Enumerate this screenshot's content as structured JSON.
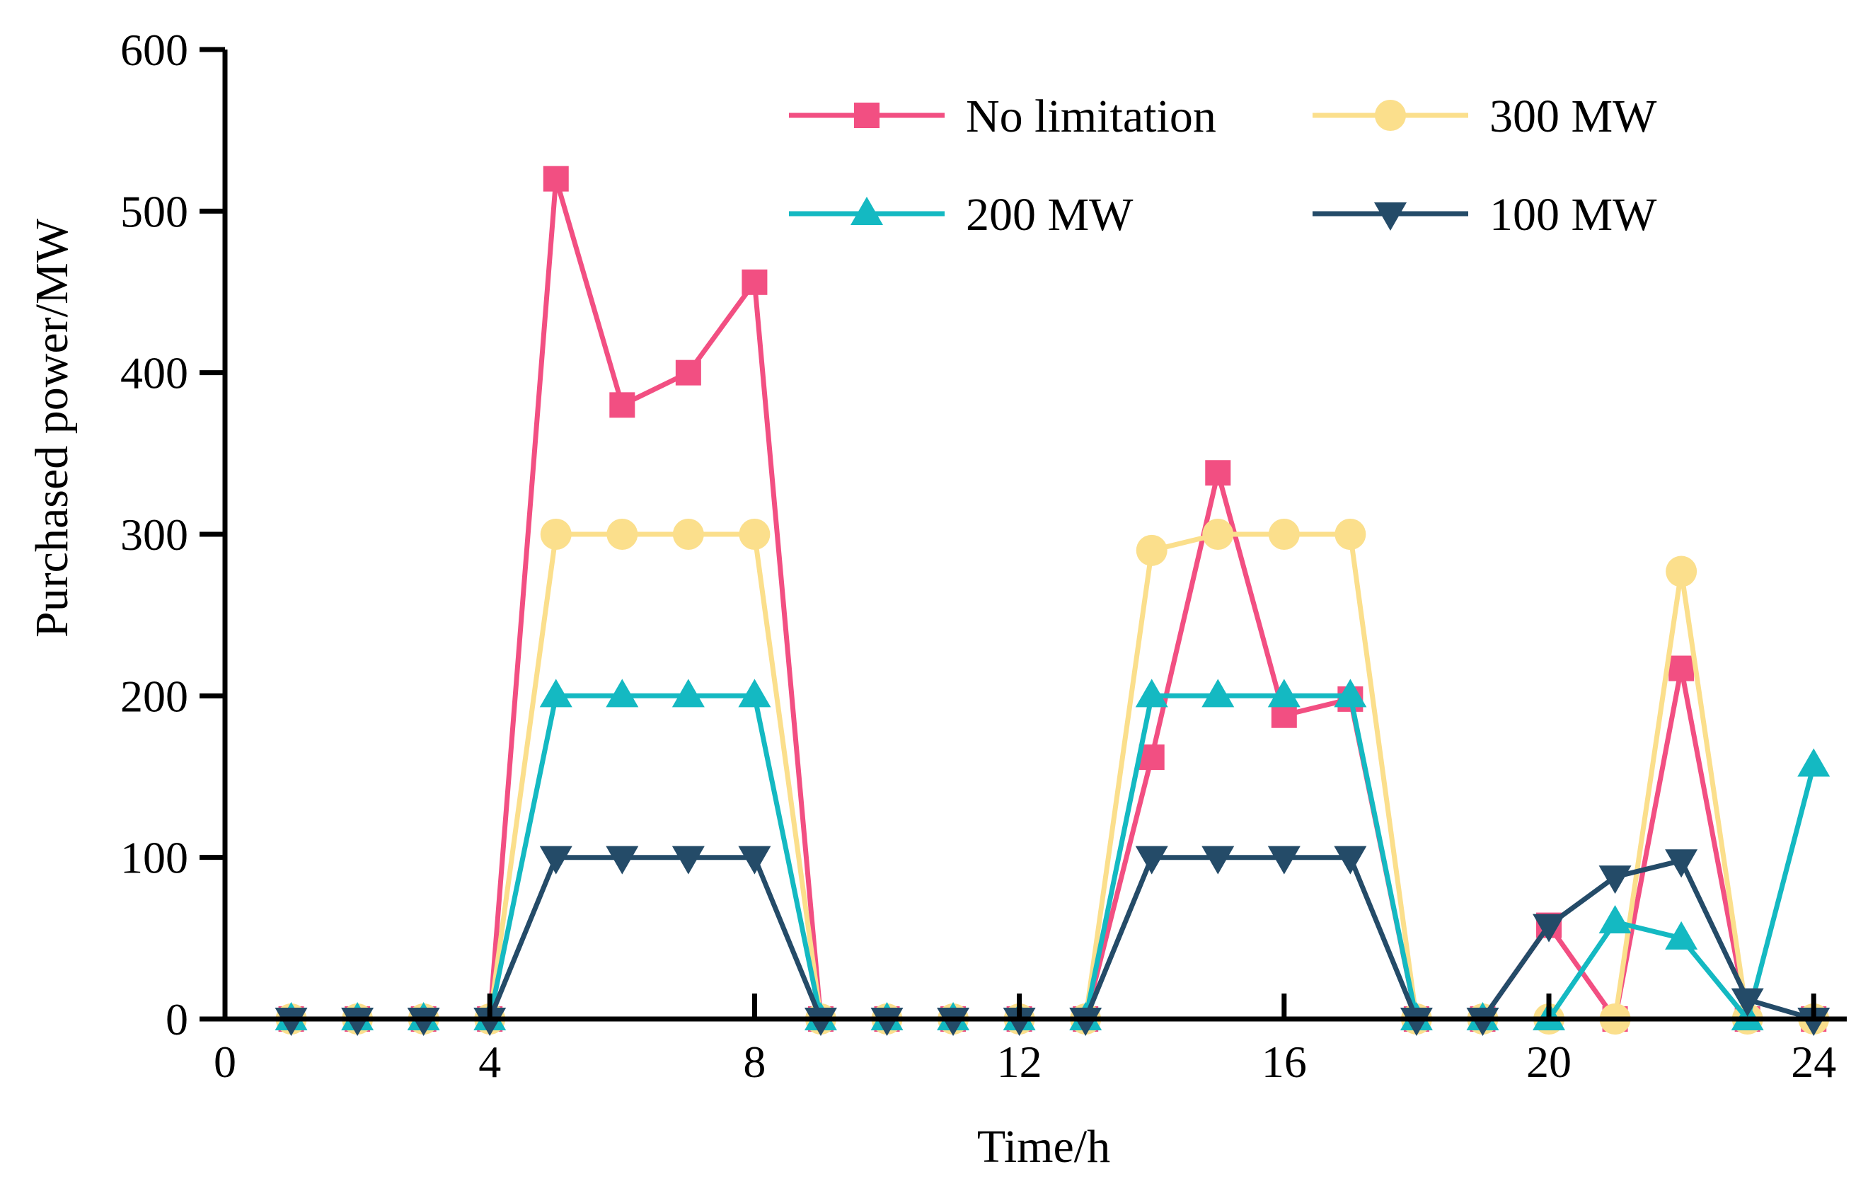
{
  "chart_data": {
    "type": "line",
    "title": "",
    "xlabel": "Time/h",
    "ylabel": "Purchased power/MW",
    "xlim": [
      0,
      24.5
    ],
    "ylim": [
      0,
      600
    ],
    "xticks": [
      0,
      4,
      8,
      12,
      16,
      20,
      24
    ],
    "yticks": [
      0,
      100,
      200,
      300,
      400,
      500,
      600
    ],
    "grid": false,
    "legend_position": "top-right",
    "x": [
      1,
      2,
      3,
      4,
      5,
      6,
      7,
      8,
      9,
      10,
      11,
      12,
      13,
      14,
      15,
      16,
      17,
      18,
      19,
      20,
      21,
      22,
      23,
      24
    ],
    "series": [
      {
        "name": "No limitation",
        "color": "#f24f82",
        "marker": "square",
        "values": [
          0,
          0,
          0,
          0,
          520,
          380,
          400,
          456,
          0,
          0,
          0,
          0,
          0,
          162,
          338,
          188,
          198,
          0,
          0,
          58,
          0,
          217,
          0,
          0
        ]
      },
      {
        "name": "300 MW",
        "color": "#fbdf8c",
        "marker": "circle",
        "values": [
          0,
          0,
          0,
          0,
          300,
          300,
          300,
          300,
          0,
          0,
          0,
          0,
          0,
          290,
          300,
          300,
          300,
          0,
          0,
          0,
          0,
          277,
          0,
          0
        ]
      },
      {
        "name": "200 MW",
        "color": "#14b9c2",
        "marker": "triangle-up",
        "values": [
          0,
          0,
          0,
          0,
          200,
          200,
          200,
          200,
          0,
          0,
          0,
          0,
          0,
          200,
          200,
          200,
          200,
          0,
          0,
          0,
          60,
          50,
          0,
          157
        ]
      },
      {
        "name": "100 MW",
        "color": "#244b68",
        "marker": "triangle-down",
        "values": [
          0,
          0,
          0,
          0,
          100,
          100,
          100,
          100,
          0,
          0,
          0,
          0,
          0,
          100,
          100,
          100,
          100,
          0,
          0,
          58,
          88,
          98,
          12,
          0
        ]
      }
    ]
  }
}
